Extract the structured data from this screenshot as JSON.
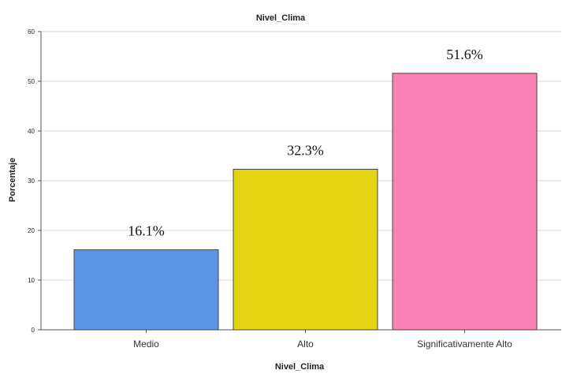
{
  "chart_data": {
    "type": "bar",
    "title": "Nivel_Clima",
    "xlabel": "Nivel_Clima",
    "ylabel": "Porcentaje",
    "categories": [
      "Medio",
      "Alto",
      "Significativamente Alto"
    ],
    "values": [
      16.1,
      32.3,
      51.6
    ],
    "data_labels": [
      "16.1%",
      "32.3%",
      "51.6%"
    ],
    "ylim": [
      0,
      60
    ],
    "yticks": [
      0,
      10,
      20,
      30,
      40,
      50,
      60
    ],
    "grid": true,
    "legend": "none",
    "colors": [
      "#5b95e3",
      "#e3d514",
      "#fb82b4"
    ]
  }
}
